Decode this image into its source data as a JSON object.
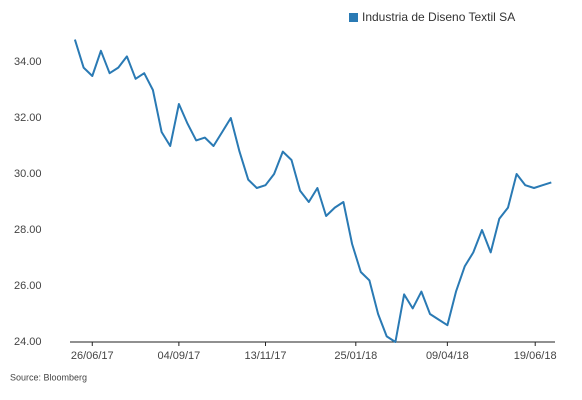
{
  "chart_data": {
    "type": "line",
    "source": "Source: Bloomberg",
    "x": [
      "2017-06-12",
      "2017-06-19",
      "2017-06-26",
      "2017-07-03",
      "2017-07-10",
      "2017-07-17",
      "2017-07-24",
      "2017-07-31",
      "2017-08-07",
      "2017-08-14",
      "2017-08-21",
      "2017-08-28",
      "2017-09-04",
      "2017-09-11",
      "2017-09-18",
      "2017-09-25",
      "2017-10-02",
      "2017-10-09",
      "2017-10-16",
      "2017-10-23",
      "2017-10-30",
      "2017-11-06",
      "2017-11-13",
      "2017-11-20",
      "2017-11-27",
      "2017-12-04",
      "2017-12-11",
      "2017-12-18",
      "2017-12-25",
      "2018-01-01",
      "2018-01-08",
      "2018-01-15",
      "2018-01-22",
      "2018-01-29",
      "2018-02-05",
      "2018-02-12",
      "2018-02-19",
      "2018-02-26",
      "2018-03-05",
      "2018-03-12",
      "2018-03-19",
      "2018-03-26",
      "2018-04-02",
      "2018-04-09",
      "2018-04-16",
      "2018-04-23",
      "2018-04-30",
      "2018-05-07",
      "2018-05-14",
      "2018-05-21",
      "2018-05-28",
      "2018-06-04",
      "2018-06-11",
      "2018-06-18",
      "2018-06-25",
      "2018-07-02"
    ],
    "series": [
      {
        "name": "Industria de Diseno Textil SA",
        "color": "#2a7ab4",
        "values": [
          34.8,
          33.8,
          33.5,
          34.4,
          33.6,
          33.8,
          34.2,
          33.4,
          33.6,
          33.0,
          31.5,
          31.0,
          32.5,
          31.8,
          31.2,
          31.3,
          31.0,
          31.5,
          32.0,
          30.8,
          29.8,
          29.5,
          29.6,
          30.0,
          30.8,
          30.5,
          29.4,
          29.0,
          29.5,
          28.5,
          28.8,
          29.0,
          27.5,
          26.5,
          26.2,
          25.0,
          24.2,
          24.0,
          25.7,
          25.2,
          25.8,
          25.0,
          24.8,
          24.6,
          25.8,
          26.7,
          27.2,
          28.0,
          27.2,
          28.4,
          28.8,
          30.0,
          29.6,
          29.5,
          29.6,
          29.7
        ]
      }
    ],
    "xlim": [
      "2017-06-08",
      "2018-07-05"
    ],
    "xticks": [
      {
        "value": "2017-06-26",
        "label": "26/06/17"
      },
      {
        "value": "2017-09-04",
        "label": "04/09/17"
      },
      {
        "value": "2017-11-13",
        "label": "13/11/17"
      },
      {
        "value": "2018-01-25",
        "label": "25/01/18"
      },
      {
        "value": "2018-04-09",
        "label": "09/04/18"
      },
      {
        "value": "2018-06-19",
        "label": "19/06/18"
      }
    ],
    "ylim": [
      24,
      35.2
    ],
    "yticks": [
      {
        "value": 24,
        "label": "24.00"
      },
      {
        "value": 26,
        "label": "26.00"
      },
      {
        "value": 28,
        "label": "28.00"
      },
      {
        "value": 30,
        "label": "30.00"
      },
      {
        "value": 32,
        "label": "32.00"
      },
      {
        "value": 34,
        "label": "34.00"
      }
    ],
    "grid": false,
    "legend": "top-right"
  }
}
